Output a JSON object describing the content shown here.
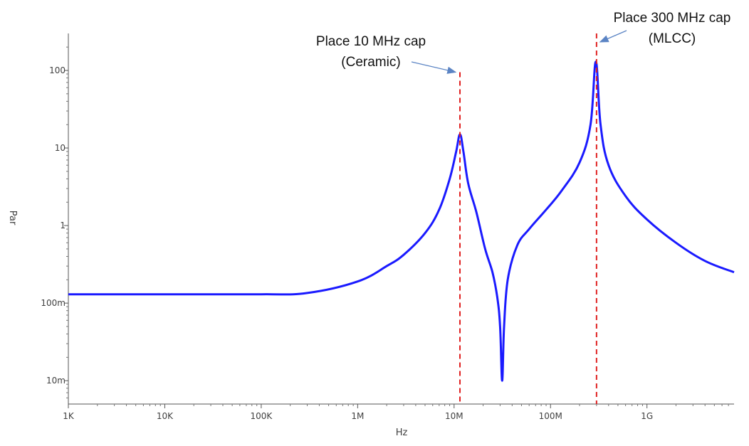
{
  "chart_data": {
    "type": "line",
    "xlabel": "Hz",
    "ylabel": "Par",
    "x_scale": "log",
    "y_scale": "log",
    "xlim": [
      1000,
      8000000000
    ],
    "ylim": [
      0.005,
      300
    ],
    "grid": false,
    "legend": "none",
    "x_ticks": [
      {
        "value": 1000,
        "label": "1K"
      },
      {
        "value": 10000,
        "label": "10K"
      },
      {
        "value": 100000,
        "label": "100K"
      },
      {
        "value": 1000000,
        "label": "1M"
      },
      {
        "value": 10000000,
        "label": "10M"
      },
      {
        "value": 100000000,
        "label": "100M"
      },
      {
        "value": 1000000000,
        "label": "1G"
      }
    ],
    "y_ticks": [
      {
        "value": 0.01,
        "label": "10m"
      },
      {
        "value": 0.1,
        "label": "100m"
      },
      {
        "value": 1,
        "label": "1"
      },
      {
        "value": 10,
        "label": "10"
      },
      {
        "value": 100,
        "label": "100"
      }
    ],
    "series": [
      {
        "color": "#1a1aff",
        "points": [
          [
            1000,
            0.13
          ],
          [
            10000,
            0.13
          ],
          [
            100000,
            0.13
          ],
          [
            300000,
            0.135
          ],
          [
            1000000,
            0.19
          ],
          [
            2000000,
            0.3
          ],
          [
            3000000,
            0.42
          ],
          [
            5000000,
            0.8
          ],
          [
            7000000,
            1.6
          ],
          [
            9000000,
            4.0
          ],
          [
            10500000,
            9.0
          ],
          [
            11500000,
            15.0
          ],
          [
            12500000,
            9.0
          ],
          [
            14000000,
            3.5
          ],
          [
            17000000,
            1.5
          ],
          [
            21000000,
            0.5
          ],
          [
            25000000,
            0.25
          ],
          [
            28000000,
            0.12
          ],
          [
            30000000,
            0.05
          ],
          [
            31500000,
            0.01
          ],
          [
            33000000,
            0.05
          ],
          [
            36000000,
            0.2
          ],
          [
            45000000,
            0.55
          ],
          [
            60000000,
            0.9
          ],
          [
            90000000,
            1.6
          ],
          [
            130000000,
            2.8
          ],
          [
            200000000,
            6.5
          ],
          [
            260000000,
            20.0
          ],
          [
            295000000,
            130.0
          ],
          [
            330000000,
            20.0
          ],
          [
            400000000,
            6.0
          ],
          [
            600000000,
            2.4
          ],
          [
            1000000000,
            1.2
          ],
          [
            2000000000,
            0.6
          ],
          [
            4000000000,
            0.35
          ],
          [
            8000000000,
            0.25
          ]
        ]
      }
    ],
    "markers": [
      {
        "x": 11500000,
        "y_top": 95,
        "color": "#e02020",
        "style": "dashed"
      },
      {
        "x": 300000000,
        "y_top": 300,
        "color": "#e02020",
        "style": "dashed"
      }
    ],
    "annotations": [
      {
        "lines": [
          "Place 10 MHz cap",
          "(Ceramic)"
        ],
        "arrow_to": {
          "x": 11500000,
          "y": 95
        }
      },
      {
        "lines": [
          "Place 300 MHz cap",
          "(MLCC)"
        ],
        "arrow_to": {
          "x": 300000000,
          "y": 300
        }
      }
    ]
  }
}
